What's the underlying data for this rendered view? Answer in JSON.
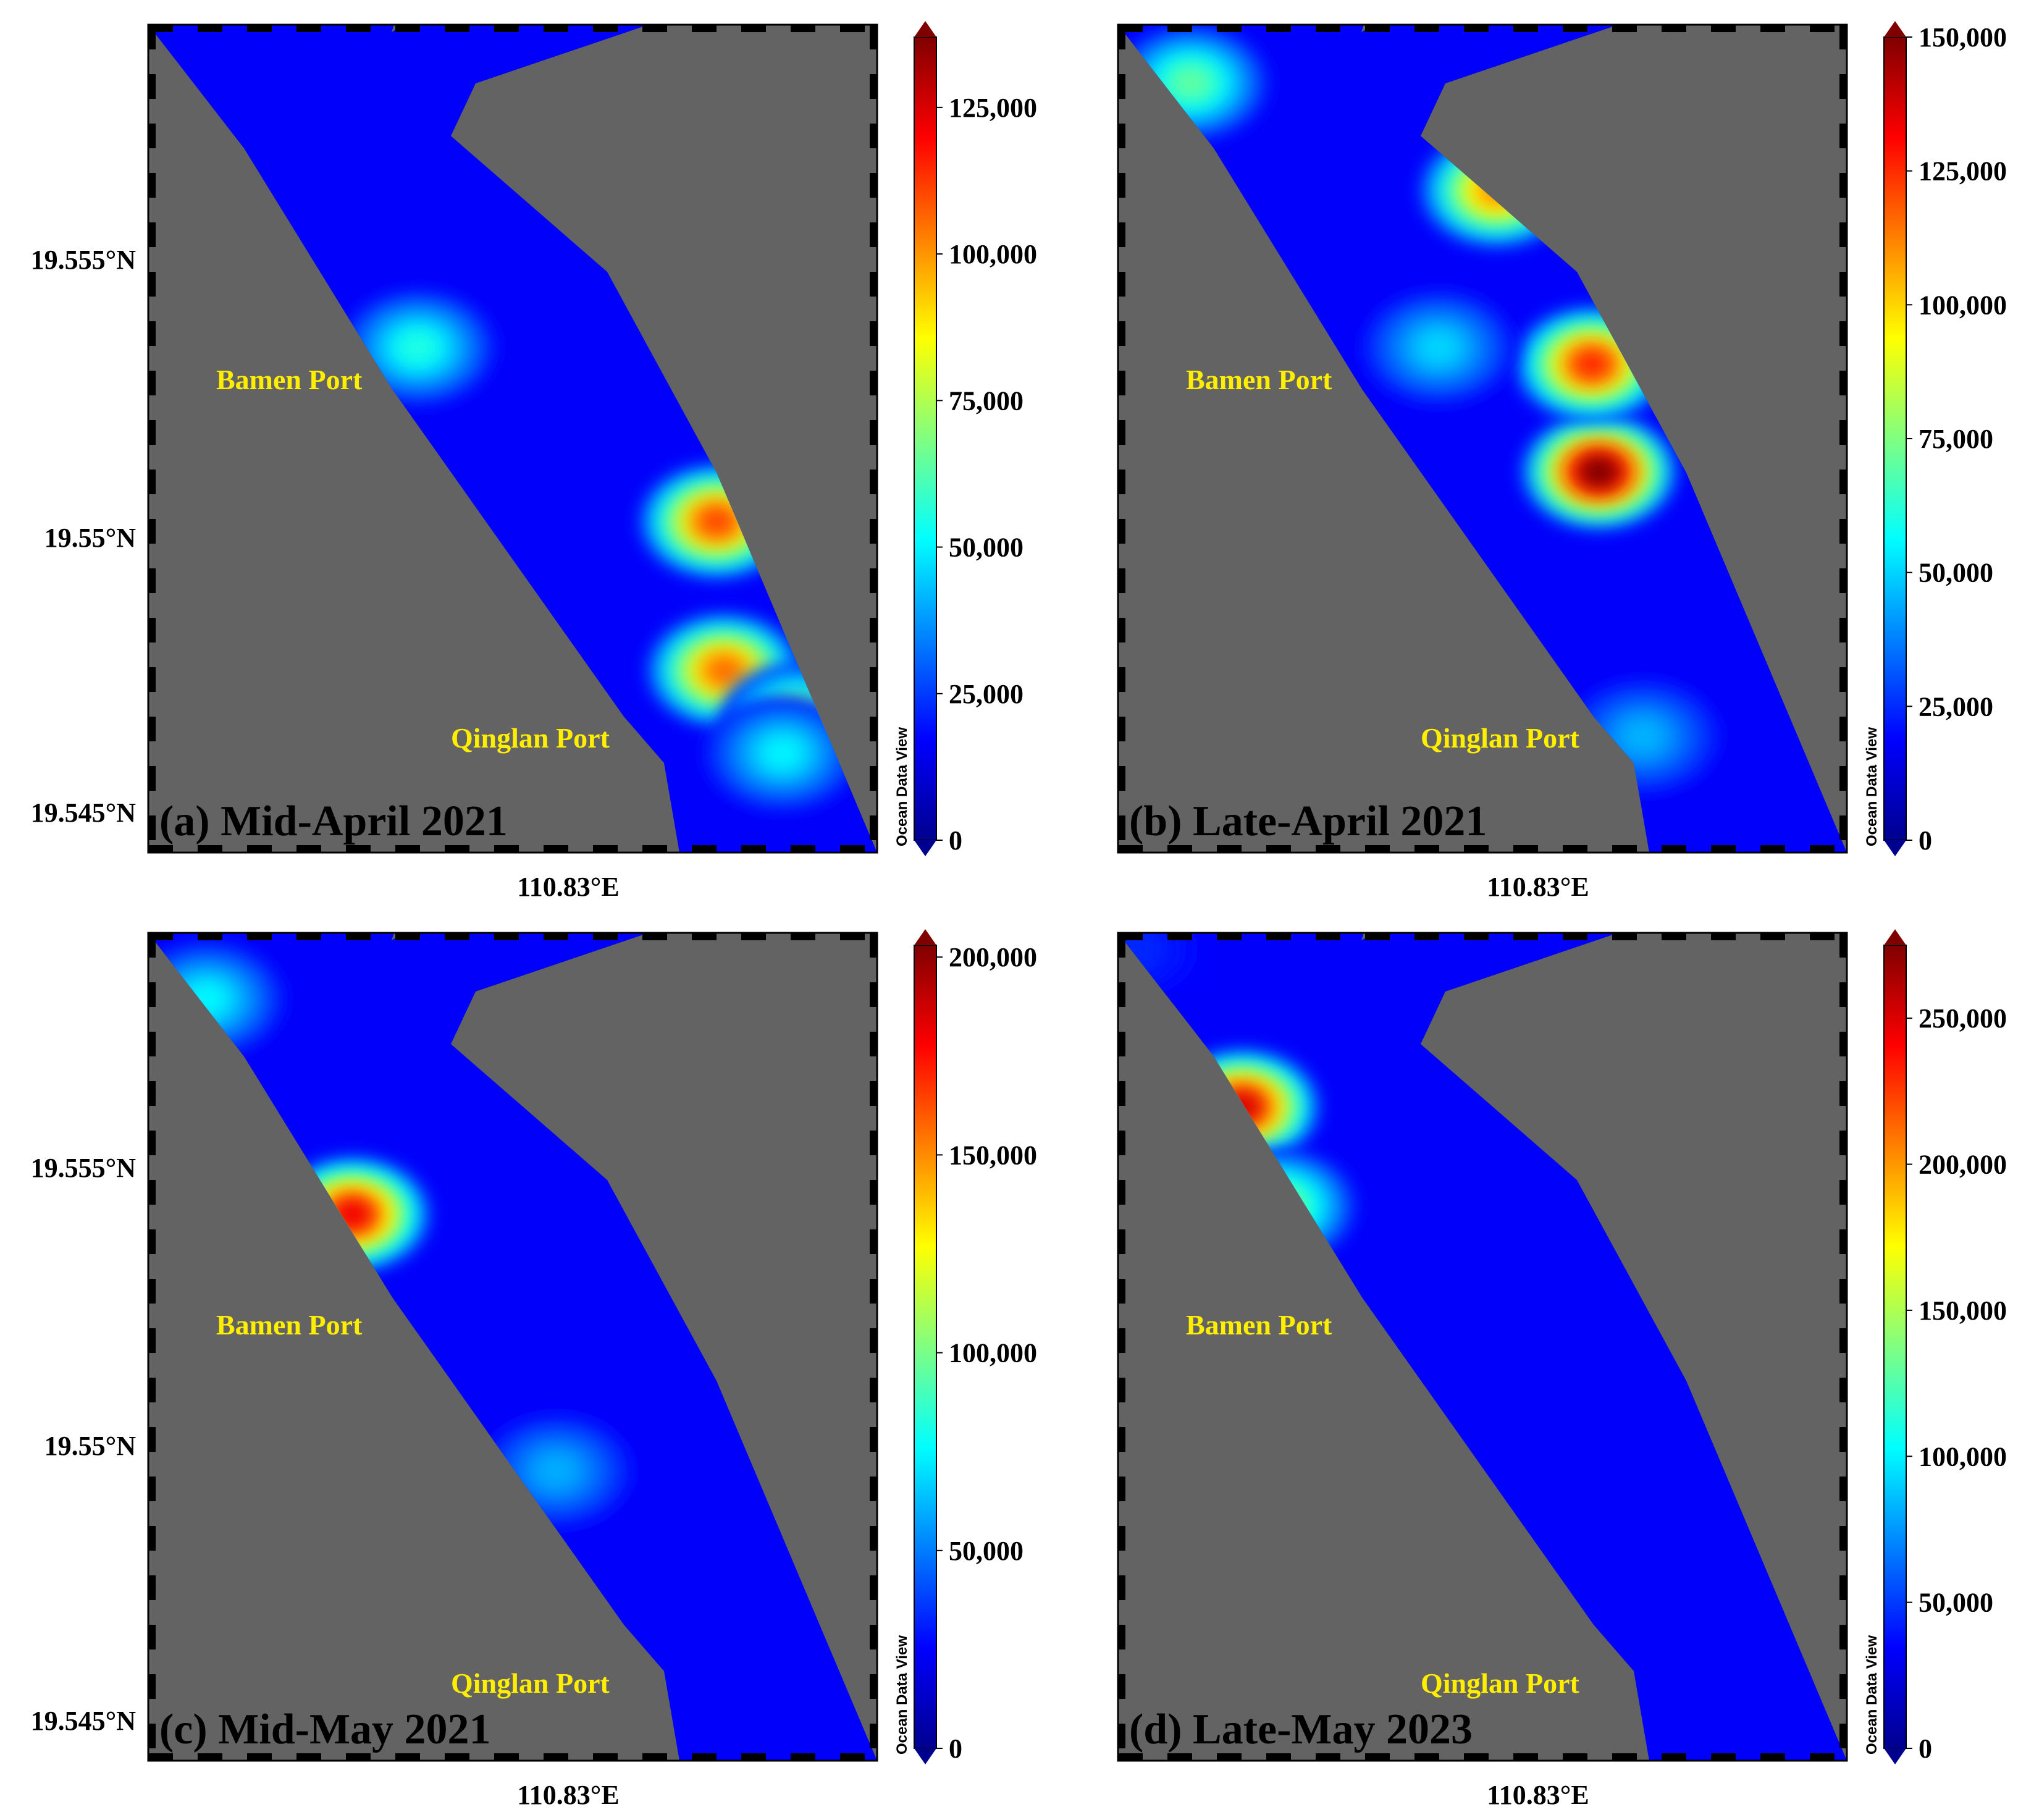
{
  "colors": {
    "land": "#636363",
    "scale": [
      "#00008f",
      "#0000ff",
      "#0080ff",
      "#00ffff",
      "#80ff80",
      "#ffff00",
      "#ff8000",
      "#ff0000",
      "#800000"
    ]
  },
  "credit": "Ocean Data View",
  "ports": {
    "north": "Bamen Port",
    "south": "Qinglan Port"
  },
  "lat_ticks": [
    "19.555°N",
    "19.55°N",
    "19.545°N"
  ],
  "lon_tick": "110.83°E",
  "panels": [
    {
      "title": "(a) Mid-April 2021",
      "colorbar_max": 137000,
      "colorbar_ticks": [
        "0",
        "25,000",
        "50,000",
        "75,000",
        "100,000",
        "125,000"
      ],
      "tick_values": [
        0,
        25000,
        50000,
        75000,
        100000,
        125000
      ],
      "hotspots": [
        {
          "lx": 0.78,
          "ly": 0.6,
          "value": 110000
        },
        {
          "lx": 0.79,
          "ly": 0.78,
          "value": 105000
        },
        {
          "lx": 0.89,
          "ly": 0.84,
          "value": 75000
        },
        {
          "lx": 0.37,
          "ly": 0.39,
          "value": 55000
        },
        {
          "lx": 0.87,
          "ly": 0.88,
          "value": 50000
        }
      ]
    },
    {
      "title": "(b) Late-April 2021",
      "colorbar_max": 150000,
      "colorbar_ticks": [
        "0",
        "25,000",
        "50,000",
        "75,000",
        "100,000",
        "125,000",
        "150,000"
      ],
      "tick_values": [
        0,
        25000,
        50000,
        75000,
        100000,
        125000,
        150000
      ],
      "hotspots": [
        {
          "lx": 0.66,
          "ly": 0.54,
          "value": 150000
        },
        {
          "lx": 0.65,
          "ly": 0.41,
          "value": 125000
        },
        {
          "lx": 0.52,
          "ly": 0.2,
          "value": 110000
        },
        {
          "lx": 0.1,
          "ly": 0.07,
          "value": 70000
        },
        {
          "lx": 0.44,
          "ly": 0.39,
          "value": 50000
        },
        {
          "lx": 0.72,
          "ly": 0.86,
          "value": 45000
        }
      ]
    },
    {
      "title": "(c) Mid-May 2021",
      "colorbar_max": 203000,
      "colorbar_ticks": [
        "0",
        "50,000",
        "100,000",
        "150,000",
        "200,000"
      ],
      "tick_values": [
        0,
        50000,
        100000,
        150000,
        200000
      ],
      "hotspots": [
        {
          "lx": 0.28,
          "ly": 0.34,
          "value": 180000
        },
        {
          "lx": 0.08,
          "ly": 0.08,
          "value": 75000
        },
        {
          "lx": 0.56,
          "ly": 0.65,
          "value": 60000
        }
      ]
    },
    {
      "title": "(d) Late-May 2023",
      "colorbar_max": 275000,
      "colorbar_ticks": [
        "0",
        "50,000",
        "100,000",
        "150,000",
        "200,000",
        "250,000"
      ],
      "tick_values": [
        0,
        50000,
        100000,
        150000,
        200000,
        250000
      ],
      "hotspots": [
        {
          "lx": 0.17,
          "ly": 0.21,
          "value": 250000
        },
        {
          "lx": 0.22,
          "ly": 0.33,
          "value": 140000
        },
        {
          "lx": 0.02,
          "ly": 0.02,
          "value": 45000
        }
      ]
    }
  ]
}
